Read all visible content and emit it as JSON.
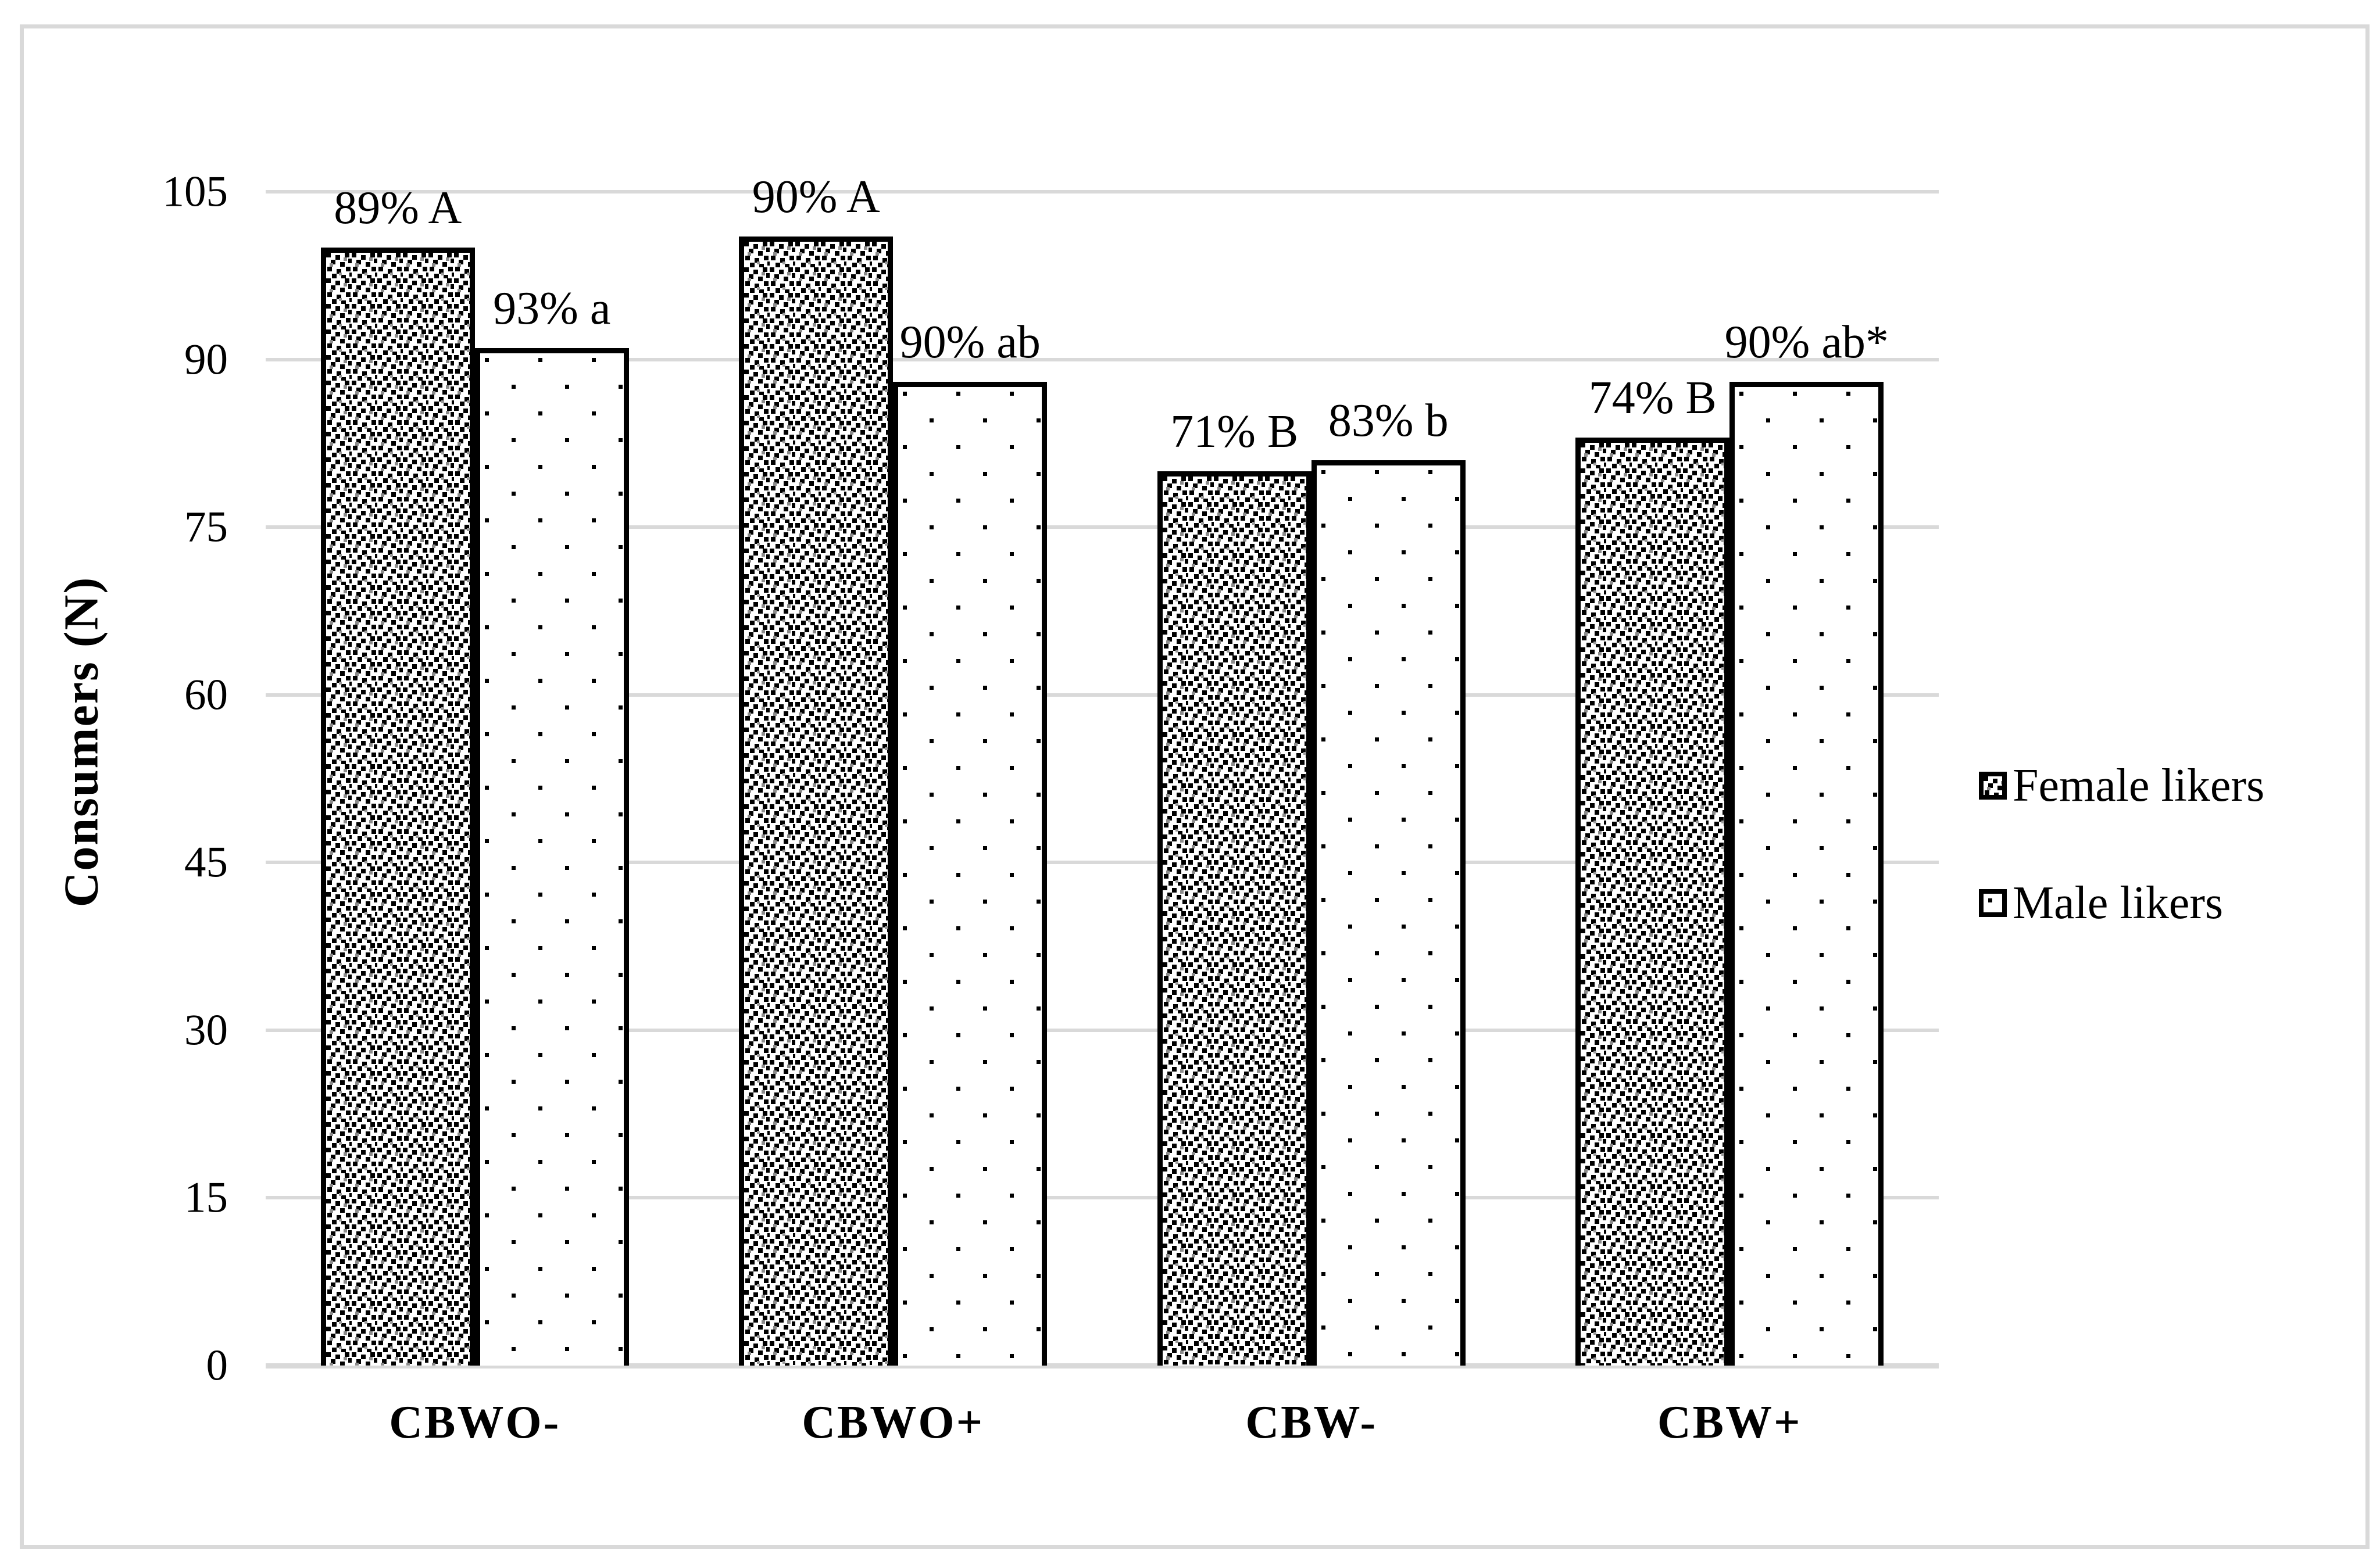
{
  "figure": {
    "background": "#ffffff",
    "frame_color": "#d9d9d9",
    "y_axis_title": "Consumers (N)"
  },
  "chart_data": {
    "type": "bar",
    "title": "",
    "xlabel": "",
    "ylabel": "Consumers (N)",
    "categories": [
      "CBWO-",
      "CBWO+",
      "CBW-",
      "CBW+"
    ],
    "series": [
      {
        "name": "Female likers",
        "pattern": "dense-black-speckle",
        "values": [
          100,
          101,
          80,
          83
        ],
        "bar_labels": [
          "89% A",
          "90% A",
          "71% B",
          "74% B"
        ]
      },
      {
        "name": "Male likers",
        "pattern": "sparse-black-dots",
        "values": [
          91,
          88,
          81,
          88
        ],
        "bar_labels": [
          "93% a",
          "90% ab",
          "83% b",
          "90% ab*"
        ]
      }
    ],
    "ylim": [
      0,
      105
    ],
    "yticks": [
      0,
      15,
      30,
      45,
      60,
      75,
      90,
      105
    ],
    "grid": true,
    "legend_position": "right",
    "colors": {
      "grid": "#d9d9d9",
      "frame": "#d9d9d9",
      "bar_fill": "#ffffff",
      "bar_border": "#000000",
      "text": "#000000"
    }
  }
}
